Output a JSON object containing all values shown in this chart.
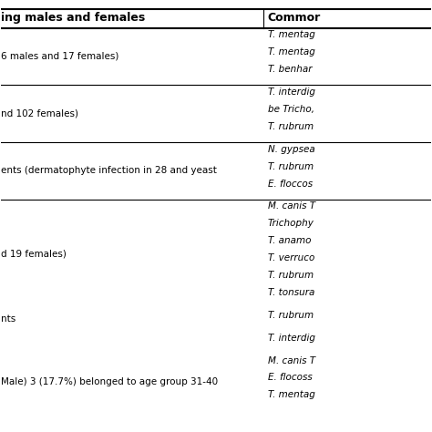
{
  "col1_header": "ing males and females",
  "col2_header": "Commor",
  "rows": [
    {
      "col1": "6 males and 17 females)",
      "col2": [
        "T. mentag",
        "T. mentag",
        "T. benhar"
      ]
    },
    {
      "col1": "nd 102 females)",
      "col2": [
        "T. interdig",
        "be Tricho,",
        "T. rubrum"
      ]
    },
    {
      "col1": "ents (dermatophyte infection in 28 and yeast",
      "col2": [
        "N. gypsea",
        "T. rubrum",
        "E. floccos"
      ]
    },
    {
      "col1": "d 19 females)",
      "col2": [
        "M. canis T",
        "Trichophy",
        "T. anamo",
        "T. verruco",
        "T. rubrum",
        "T. tonsura"
      ]
    },
    {
      "col1": "nts",
      "col2": [
        "T. rubrum"
      ]
    },
    {
      "col1": "",
      "col2": [
        "T. interdig"
      ]
    },
    {
      "col1": "Male) 3 (17.7%) belonged to age group 31-40",
      "col2": [
        "M. canis T",
        "E. flocoss",
        "T. mentag"
      ]
    }
  ],
  "background_color": "#ffffff",
  "header_line_color": "#000000",
  "row_line_color": "#000000",
  "text_color": "#000000",
  "italic_col2": true
}
